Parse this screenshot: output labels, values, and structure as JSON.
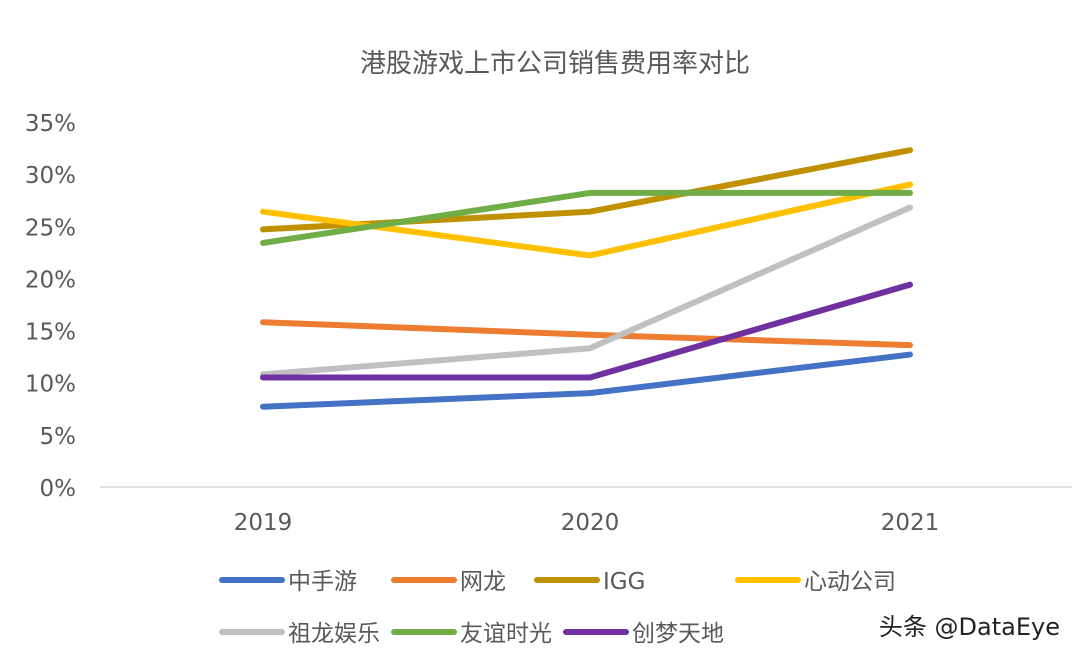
{
  "chart_data": {
    "type": "line",
    "title": "港股游戏上市公司销售费用率对比",
    "categories": [
      "2019",
      "2020",
      "2021"
    ],
    "ylim": [
      0,
      35
    ],
    "yticks": [
      "0%",
      "5%",
      "10%",
      "15%",
      "20%",
      "25%",
      "30%",
      "35%"
    ],
    "grid": false,
    "legend": "bottom",
    "series": [
      {
        "name": "中手游",
        "color": "#4472C4",
        "values": [
          7.7,
          9.0,
          12.7
        ]
      },
      {
        "name": "网龙",
        "color": "#ED7D31",
        "values": [
          15.8,
          14.6,
          13.6
        ]
      },
      {
        "name": "IGG",
        "color": "#BF9000",
        "values": [
          24.7,
          26.4,
          32.3
        ]
      },
      {
        "name": "心动公司",
        "color": "#FFC000",
        "values": [
          26.4,
          22.2,
          29.0
        ]
      },
      {
        "name": "祖龙娱乐",
        "color": "#C0C0C0",
        "values": [
          10.8,
          13.3,
          26.8
        ]
      },
      {
        "name": "友谊时光",
        "color": "#70AD47",
        "values": [
          23.4,
          28.2,
          28.2
        ]
      },
      {
        "name": "创梦天地",
        "color": "#7030A0",
        "values": [
          10.5,
          10.5,
          19.4
        ]
      }
    ]
  },
  "watermark": "头条 @DataEye"
}
